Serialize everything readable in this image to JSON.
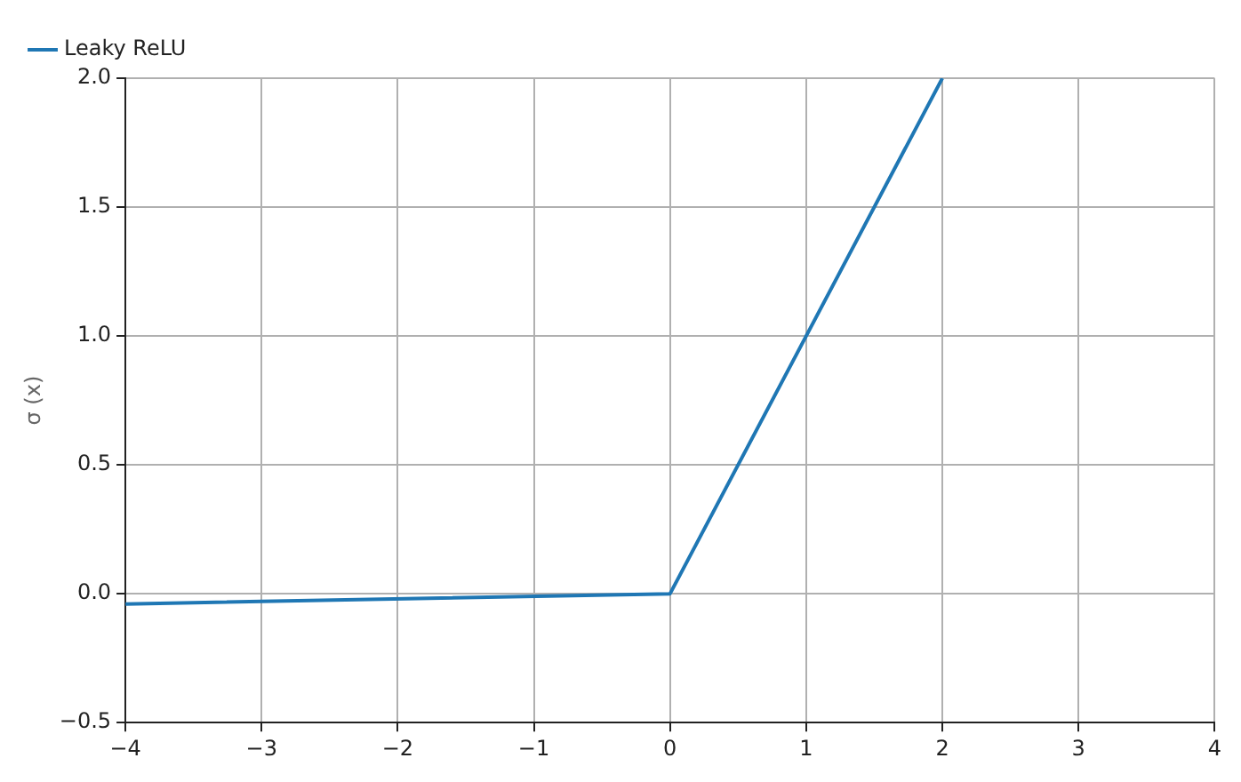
{
  "chart_data": {
    "type": "line",
    "ylabel": "σ (x)",
    "series": [
      {
        "name": "Leaky ReLU",
        "color": "#1f77b4",
        "x": [
          -4,
          0,
          2
        ],
        "values": [
          -0.04,
          0,
          2
        ]
      }
    ],
    "xlim": [
      -4,
      4
    ],
    "xticks": [
      {
        "value": -4,
        "label": "−4"
      },
      {
        "value": -3,
        "label": "−3"
      },
      {
        "value": -2,
        "label": "−2"
      },
      {
        "value": -1,
        "label": "−1"
      },
      0,
      1,
      2,
      3,
      4
    ],
    "ylim": [
      -0.5,
      2
    ],
    "yticks": [
      {
        "value": -0.5,
        "label": "−0.5"
      },
      {
        "value": 0,
        "label": "0.0"
      },
      {
        "value": 0.5,
        "label": "0.5"
      },
      {
        "value": 1,
        "label": "1.0"
      },
      {
        "value": 1.5,
        "label": "1.5"
      },
      {
        "value": 2,
        "label": "2.0"
      }
    ],
    "grid": true,
    "legend": "top left",
    "marker": "none",
    "line_style": "solid"
  }
}
